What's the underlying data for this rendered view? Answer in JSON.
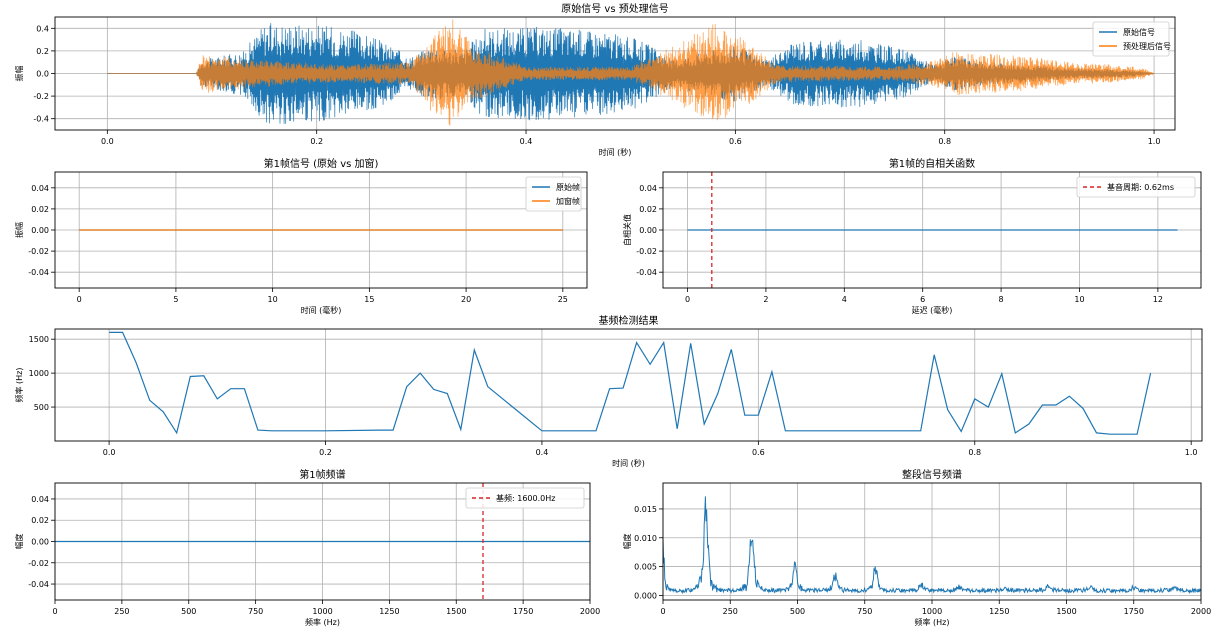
{
  "colors": {
    "blue": "#1f77b4",
    "orange": "#ff7f0e",
    "red": "#d62728",
    "grid": "#b0b0b0"
  },
  "chart_data": [
    {
      "id": "c1",
      "type": "line",
      "title": "原始信号 vs 预处理信号",
      "xlabel": "时间 (秒)",
      "ylabel": "振幅",
      "xlim": [
        -0.05,
        1.02
      ],
      "ylim": [
        -0.5,
        0.5
      ],
      "xticks": [
        0.0,
        0.2,
        0.4,
        0.6,
        0.8,
        1.0
      ],
      "xtick_labels": [
        "0.0",
        "0.2",
        "0.4",
        "0.6",
        "0.8",
        "1.0"
      ],
      "yticks": [
        0.4,
        0.2,
        0.0,
        -0.2,
        -0.4
      ],
      "ytick_labels": [
        "0.4",
        "0.2",
        "0.0",
        "-0.2",
        "-0.4"
      ],
      "grid": true,
      "legend": "top-right",
      "series": [
        {
          "name": "原始信号",
          "color": "#1f77b4",
          "envelope": [
            [
              0.0,
              0.0
            ],
            [
              0.085,
              0.0
            ],
            [
              0.09,
              0.12
            ],
            [
              0.13,
              0.2
            ],
            [
              0.15,
              0.45
            ],
            [
              0.19,
              0.45
            ],
            [
              0.23,
              0.4
            ],
            [
              0.26,
              0.3
            ],
            [
              0.29,
              0.15
            ],
            [
              0.31,
              0.25
            ],
            [
              0.34,
              0.2
            ],
            [
              0.36,
              0.4
            ],
            [
              0.42,
              0.42
            ],
            [
              0.47,
              0.38
            ],
            [
              0.51,
              0.3
            ],
            [
              0.54,
              0.12
            ],
            [
              0.57,
              0.2
            ],
            [
              0.6,
              0.25
            ],
            [
              0.63,
              0.12
            ],
            [
              0.66,
              0.3
            ],
            [
              0.72,
              0.3
            ],
            [
              0.76,
              0.22
            ],
            [
              0.79,
              0.08
            ],
            [
              0.81,
              0.15
            ],
            [
              0.84,
              0.1
            ],
            [
              0.88,
              0.08
            ],
            [
              0.92,
              0.05
            ],
            [
              0.96,
              0.04
            ],
            [
              0.98,
              0.03
            ],
            [
              1.0,
              0.0
            ]
          ]
        },
        {
          "name": "预处理后信号",
          "color": "#ff7f0e",
          "envelope": [
            [
              0.0,
              0.0
            ],
            [
              0.085,
              0.0
            ],
            [
              0.09,
              0.18
            ],
            [
              0.12,
              0.15
            ],
            [
              0.15,
              0.12
            ],
            [
              0.22,
              0.08
            ],
            [
              0.29,
              0.1
            ],
            [
              0.31,
              0.35
            ],
            [
              0.33,
              0.48
            ],
            [
              0.35,
              0.25
            ],
            [
              0.4,
              0.06
            ],
            [
              0.5,
              0.06
            ],
            [
              0.53,
              0.2
            ],
            [
              0.56,
              0.35
            ],
            [
              0.58,
              0.45
            ],
            [
              0.61,
              0.3
            ],
            [
              0.64,
              0.08
            ],
            [
              0.75,
              0.06
            ],
            [
              0.79,
              0.12
            ],
            [
              0.81,
              0.2
            ],
            [
              0.84,
              0.18
            ],
            [
              0.88,
              0.15
            ],
            [
              0.92,
              0.1
            ],
            [
              0.96,
              0.08
            ],
            [
              0.99,
              0.05
            ],
            [
              1.0,
              0.0
            ]
          ]
        }
      ]
    },
    {
      "id": "c2",
      "type": "line",
      "title": "第1帧信号 (原始 vs 加窗)",
      "xlabel": "时间 (毫秒)",
      "ylabel": "振幅",
      "xlim": [
        -1.25,
        26.25
      ],
      "ylim": [
        -0.055,
        0.055
      ],
      "xticks": [
        0,
        5,
        10,
        15,
        20,
        25
      ],
      "xtick_labels": [
        "0",
        "5",
        "10",
        "15",
        "20",
        "25"
      ],
      "yticks": [
        0.04,
        0.02,
        0.0,
        -0.02,
        -0.04
      ],
      "ytick_labels": [
        "0.04",
        "0.02",
        "0.00",
        "-0.02",
        "-0.04"
      ],
      "grid": true,
      "legend": "top-right",
      "series": [
        {
          "name": "原始帧",
          "color": "#1f77b4",
          "x": [
            0,
            25
          ],
          "y": [
            0,
            0
          ]
        },
        {
          "name": "加窗帧",
          "color": "#ff7f0e",
          "x": [
            0,
            25
          ],
          "y": [
            0,
            0
          ]
        }
      ]
    },
    {
      "id": "c3",
      "type": "line",
      "title": "第1帧的自相关函数",
      "xlabel": "延迟 (毫秒)",
      "ylabel": "自相关值",
      "xlim": [
        -0.625,
        13.1
      ],
      "ylim": [
        -0.055,
        0.055
      ],
      "xticks": [
        0,
        2,
        4,
        6,
        8,
        10,
        12
      ],
      "xtick_labels": [
        "0",
        "2",
        "4",
        "6",
        "8",
        "10",
        "12"
      ],
      "yticks": [
        0.04,
        0.02,
        0.0,
        -0.02,
        -0.04
      ],
      "ytick_labels": [
        "0.04",
        "0.02",
        "0.00",
        "-0.02",
        "-0.04"
      ],
      "grid": true,
      "legend": "top-right",
      "series": [
        {
          "name": "",
          "color": "#1f77b4",
          "x": [
            0,
            12.5
          ],
          "y": [
            0,
            0
          ]
        }
      ],
      "vline": {
        "x": 0.62,
        "label": "基音周期: 0.62ms",
        "color": "#d62728"
      }
    },
    {
      "id": "c4",
      "type": "line",
      "title": "基频检测结果",
      "xlabel": "时间 (秒)",
      "ylabel": "频率 (Hz)",
      "xlim": [
        -0.05,
        1.01
      ],
      "ylim": [
        0,
        1650
      ],
      "xticks": [
        0.0,
        0.2,
        0.4,
        0.6,
        0.8,
        1.0
      ],
      "xtick_labels": [
        "0.0",
        "0.2",
        "0.4",
        "0.6",
        "0.8",
        "1.0"
      ],
      "yticks": [
        1500,
        1000,
        500
      ],
      "ytick_labels": [
        "1500",
        "1000",
        "500"
      ],
      "grid": true,
      "series": [
        {
          "name": "",
          "color": "#1f77b4",
          "x": [
            0.0,
            0.0125,
            0.025,
            0.0375,
            0.05,
            0.0625,
            0.075,
            0.0875,
            0.1,
            0.1125,
            0.125,
            0.1375,
            0.15,
            0.2,
            0.25,
            0.2625,
            0.275,
            0.2875,
            0.3,
            0.3125,
            0.325,
            0.3375,
            0.35,
            0.4,
            0.45,
            0.4625,
            0.475,
            0.4875,
            0.5,
            0.5125,
            0.525,
            0.5375,
            0.55,
            0.5625,
            0.575,
            0.5875,
            0.6,
            0.6125,
            0.625,
            0.65,
            0.7,
            0.7375,
            0.75,
            0.7625,
            0.775,
            0.7875,
            0.8,
            0.8125,
            0.825,
            0.8375,
            0.85,
            0.8625,
            0.875,
            0.8875,
            0.9,
            0.9125,
            0.925,
            0.95,
            0.9625
          ],
          "y": [
            1600,
            1600,
            1150,
            600,
            430,
            120,
            950,
            960,
            620,
            770,
            770,
            160,
            150,
            150,
            160,
            160,
            800,
            1000,
            760,
            700,
            170,
            1340,
            800,
            150,
            150,
            770,
            780,
            1450,
            1130,
            1450,
            180,
            1440,
            250,
            700,
            1350,
            380,
            380,
            1020,
            150,
            150,
            150,
            150,
            150,
            1270,
            460,
            140,
            620,
            500,
            990,
            120,
            250,
            530,
            530,
            660,
            480,
            120,
            100,
            100,
            1000
          ]
        }
      ]
    },
    {
      "id": "c5",
      "type": "line",
      "title": "第1帧频谱",
      "xlabel": "频率 (Hz)",
      "ylabel": "幅度",
      "xlim": [
        0,
        2000
      ],
      "ylim": [
        -0.055,
        0.055
      ],
      "xticks": [
        0,
        250,
        500,
        750,
        1000,
        1250,
        1500,
        1750,
        2000
      ],
      "xtick_labels": [
        "0",
        "250",
        "500",
        "750",
        "1000",
        "1250",
        "1500",
        "1750",
        "2000"
      ],
      "yticks": [
        0.04,
        0.02,
        0.0,
        -0.02,
        -0.04
      ],
      "ytick_labels": [
        "0.04",
        "0.02",
        "0.00",
        "-0.02",
        "-0.04"
      ],
      "grid": true,
      "legend": "top-right",
      "series": [
        {
          "name": "",
          "color": "#1f77b4",
          "x": [
            0,
            2000
          ],
          "y": [
            0,
            0
          ]
        }
      ],
      "vline": {
        "x": 1600,
        "label": "基频: 1600.0Hz",
        "color": "#d62728"
      }
    },
    {
      "id": "c6",
      "type": "line",
      "title": "整段信号频谱",
      "xlabel": "频率 (Hz)",
      "ylabel": "幅度",
      "xlim": [
        0,
        2000
      ],
      "ylim": [
        -0.0008,
        0.0195
      ],
      "xticks": [
        0,
        250,
        500,
        750,
        1000,
        1250,
        1500,
        1750,
        2000
      ],
      "xtick_labels": [
        "0",
        "250",
        "500",
        "750",
        "1000",
        "1250",
        "1500",
        "1750",
        "2000"
      ],
      "yticks": [
        0.015,
        0.01,
        0.005,
        0.0
      ],
      "ytick_labels": [
        "0.015",
        "0.010",
        "0.005",
        "0.000"
      ],
      "grid": true,
      "series": [
        {
          "name": "",
          "color": "#1f77b4",
          "peaks": [
            [
              0,
              0.0085
            ],
            [
              160,
              0.0148
            ],
            [
              330,
              0.0102
            ],
            [
              490,
              0.0045
            ],
            [
              640,
              0.0028
            ],
            [
              790,
              0.0038
            ],
            [
              960,
              0.0012
            ],
            [
              1100,
              0.0007
            ],
            [
              1270,
              0.0004
            ],
            [
              1430,
              0.0007
            ],
            [
              1590,
              0.0006
            ],
            [
              1750,
              0.0005
            ],
            [
              1900,
              0.0006
            ]
          ]
        }
      ]
    }
  ]
}
